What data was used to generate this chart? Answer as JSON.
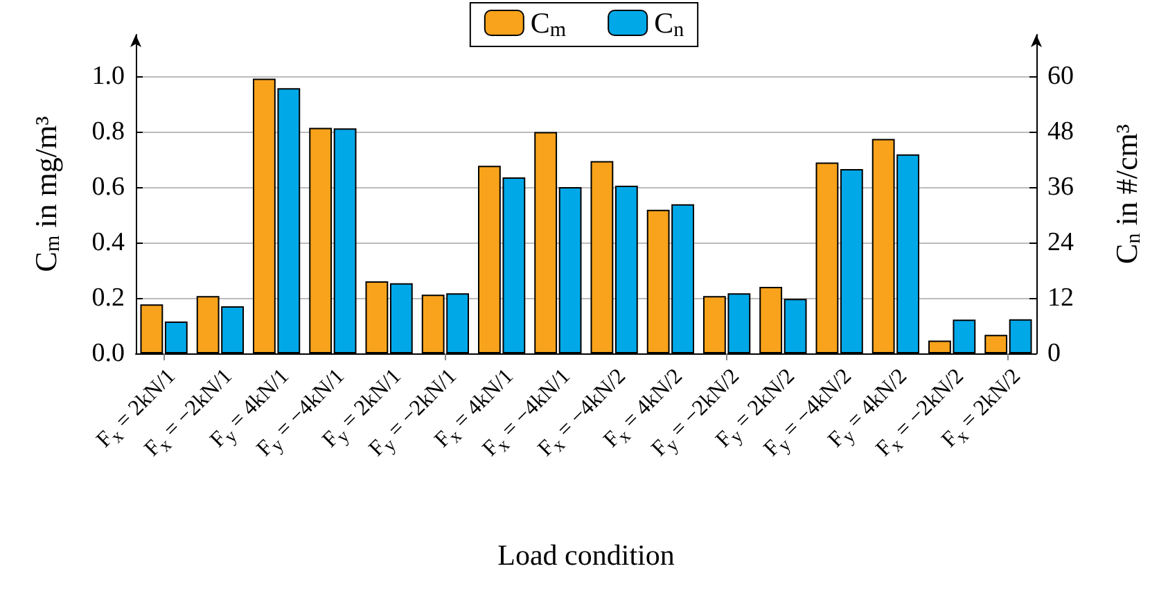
{
  "chart_data": {
    "type": "bar",
    "xlabel": "Load condition",
    "ylabel": "C$_{m}$ in mg/m³",
    "y2label": "C$_{n}$ in #/cm³",
    "categories": [
      "F$_{x}$ = 2kN/1",
      "F$_{x}$ = −2kN/1",
      "F$_{y}$ = 4kN/1",
      "F$_{y}$ = −4kN/1",
      "F$_{y}$ = 2kN/1",
      "F$_{y}$ = −2kN/1",
      "F$_{x}$ = 4kN/1",
      "F$_{x}$ = −4kN/1",
      "F$_{x}$ = −4kN/2",
      "F$_{x}$ = 4kN/2",
      "F$_{y}$ = −2kN/2",
      "F$_{y}$ = 2kN/2",
      "F$_{y}$ = −4kN/2",
      "F$_{y}$ = 4kN/2",
      "F$_{x}$ = −2kN/2",
      "F$_{x}$ = 2kN/2"
    ],
    "series": [
      {
        "name": "C$_{m}$",
        "color": "#f8a31b",
        "values": [
          0.177,
          0.207,
          0.991,
          0.814,
          0.26,
          0.212,
          0.677,
          0.799,
          0.694,
          0.518,
          0.207,
          0.24,
          0.689,
          0.774,
          0.046,
          0.067
        ]
      },
      {
        "name": "C$_{n}$",
        "color": "#00a8e8",
        "axis": "y2",
        "values": [
          6.9,
          10.2,
          57.4,
          48.7,
          15.2,
          13.0,
          38.1,
          36.0,
          36.3,
          32.3,
          13.0,
          11.8,
          39.9,
          43.1,
          7.3,
          7.4
        ]
      }
    ],
    "ylim": [
      0,
      1.15
    ],
    "yticks": [
      {
        "value": 0,
        "label": "0.0"
      },
      0.2,
      0.4,
      0.6,
      0.8,
      {
        "value": 1,
        "label": "1.0"
      }
    ],
    "y2lim": [
      0,
      69
    ],
    "y2ticks": [
      0,
      12,
      24,
      36,
      48,
      60
    ],
    "grid": "y",
    "legend": "top"
  }
}
